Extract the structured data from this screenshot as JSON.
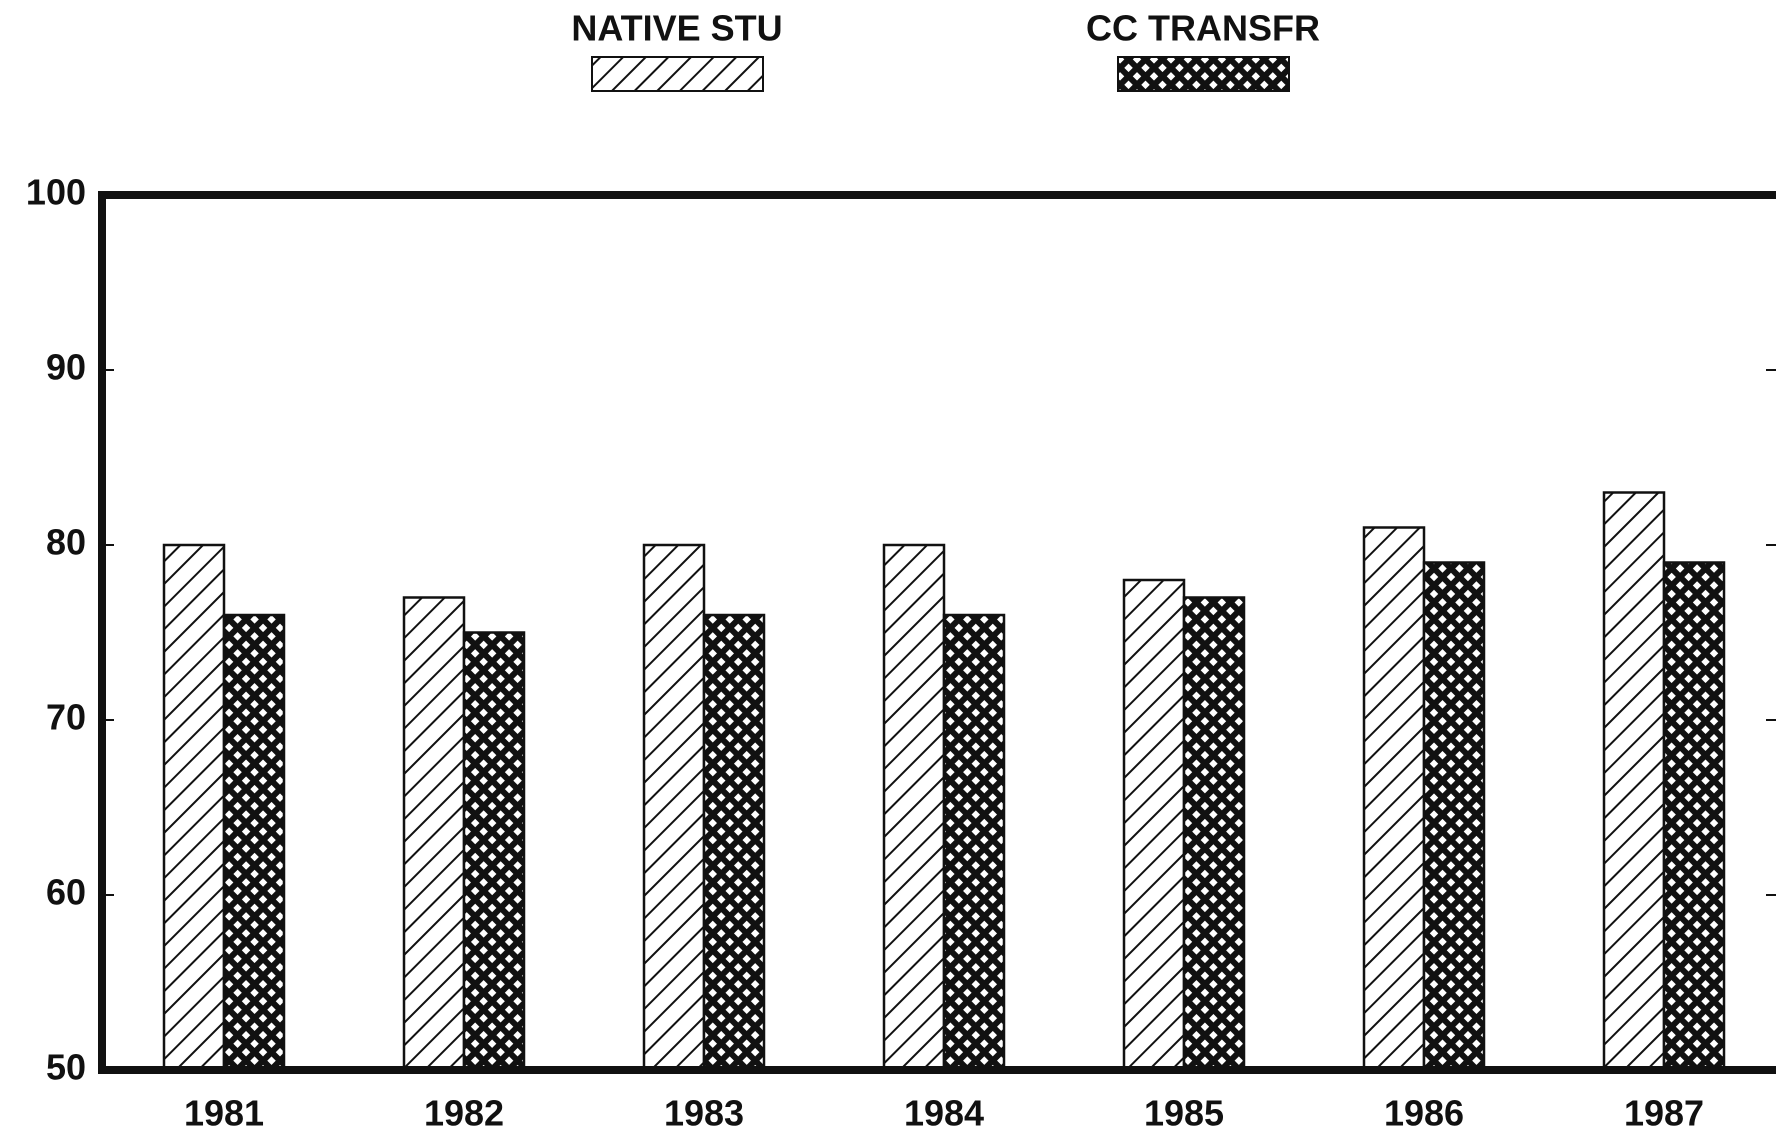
{
  "chart_data": {
    "type": "bar",
    "categories": [
      "1981",
      "1982",
      "1983",
      "1984",
      "1985",
      "1986",
      "1987"
    ],
    "series": [
      {
        "name": "NATIVE STU",
        "color": "#111111",
        "pattern": "hatch",
        "values": [
          80,
          77,
          80,
          80,
          78,
          81,
          83
        ]
      },
      {
        "name": "CC TRANSFR",
        "color": "#111111",
        "pattern": "crosshatch",
        "values": [
          76,
          75,
          76,
          76,
          77,
          79,
          79
        ]
      }
    ],
    "ylim": [
      50,
      100
    ],
    "yticks": [
      50,
      60,
      70,
      80,
      90,
      100
    ],
    "grid": false
  }
}
